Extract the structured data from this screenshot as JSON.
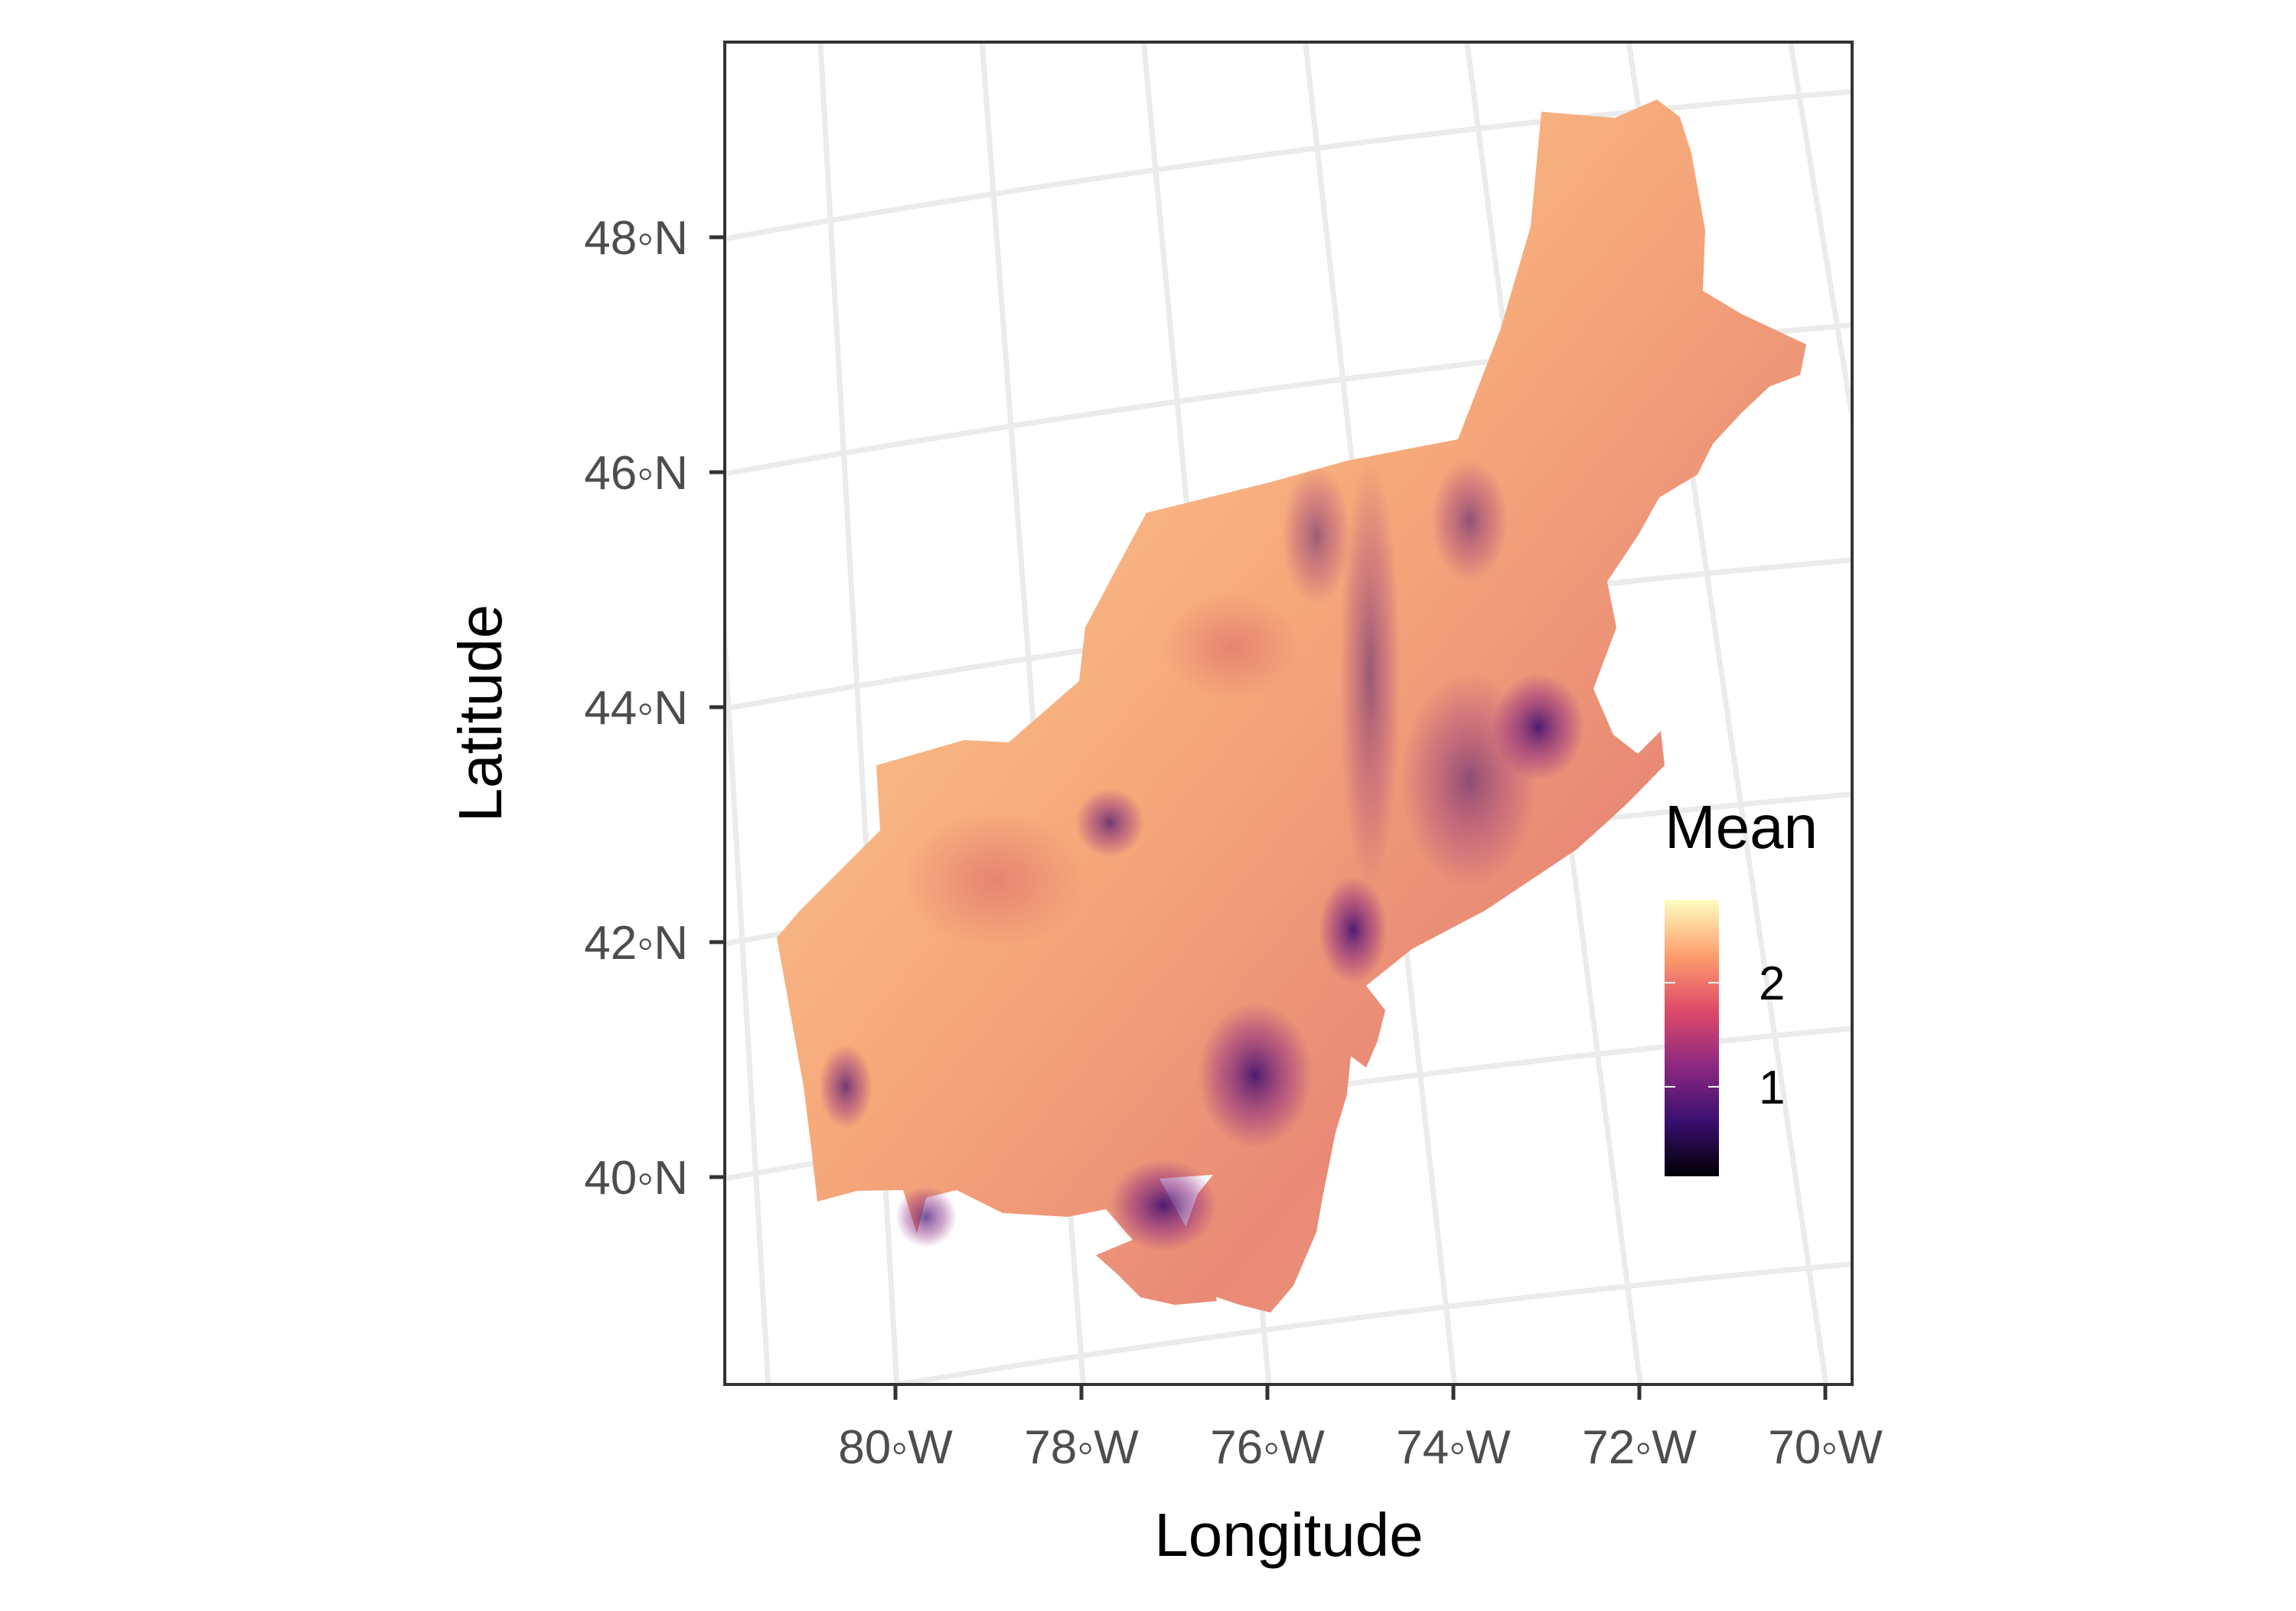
{
  "map": {
    "xlabel": "Longitude",
    "ylabel": "Latitude",
    "x_ticks": [
      "80◦W",
      "78◦W",
      "76◦W",
      "74◦W",
      "72◦W",
      "70◦W"
    ],
    "y_ticks": [
      "48◦N",
      "46◦N",
      "44◦N",
      "42◦N",
      "40◦N"
    ],
    "grid": true,
    "legend": {
      "title": "Mean",
      "labels": [
        "2",
        "1"
      ],
      "position": "right",
      "colormap": "magma",
      "colors": [
        "#000004",
        "#3b0f70",
        "#8c2981",
        "#de4968",
        "#fe9f6d",
        "#fcfdbf"
      ]
    }
  },
  "chart_data": {
    "type": "heatmap",
    "xlabel": "Longitude",
    "ylabel": "Latitude",
    "x_ticks": [
      -80,
      -78,
      -76,
      -74,
      -72,
      -70
    ],
    "y_ticks": [
      48,
      46,
      44,
      42,
      40
    ],
    "color_scale": {
      "name": "Mean",
      "breaks": [
        2,
        1
      ],
      "range_approx": [
        0.2,
        2.6
      ]
    }
  }
}
